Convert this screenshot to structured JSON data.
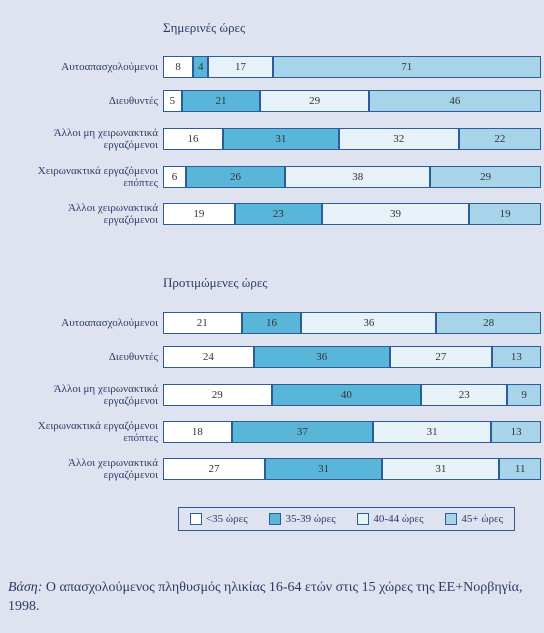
{
  "chart_data": [
    {
      "type": "bar",
      "title": "Σημερινές ώρες",
      "categories": [
        "Αυτοαπασχολούμενοι",
        "Διευθυντές",
        "Άλλοι μη χειρωνακτικά\nεργαζόμενοι",
        "Χειρωνακτικά εργαζόμενοι\nεπόπτες",
        "Άλλοι χειρωνακτικά\nεργαζόμενοι"
      ],
      "series": [
        {
          "color": "#ffffff",
          "values": [
            8,
            5,
            16,
            6,
            19
          ]
        },
        {
          "color": "#5ab6d9",
          "values": [
            4,
            21,
            31,
            26,
            23
          ]
        },
        {
          "color": "#e6f1f8",
          "values": [
            17,
            29,
            32,
            38,
            39
          ]
        },
        {
          "color": "#a8d4ea",
          "values": [
            71,
            46,
            22,
            29,
            19
          ]
        }
      ]
    },
    {
      "type": "bar",
      "title": "Προτιμώμενες ώρες",
      "categories": [
        "Αυτοαπασχολούμενοι",
        "Διευθυντές",
        "Άλλοι μη χειρωνακτικά\nεργαζόμενοι",
        "Χειρωνακτικά εργαζόμενοι\nεπόπτες",
        "Άλλοι χειρωνακτικά\nεργαζόμενοι"
      ],
      "series": [
        {
          "name": "<35 ώρες",
          "color": "#ffffff",
          "values": [
            21,
            24,
            29,
            18,
            27
          ]
        },
        {
          "name": "35-39 ώρες",
          "color": "#5ab6d9",
          "values": [
            16,
            36,
            40,
            37,
            31
          ]
        },
        {
          "name": "40-44 ώρες",
          "color": "#e6f1f8",
          "values": [
            36,
            27,
            23,
            31,
            31
          ]
        },
        {
          "name": "45+ ώρες",
          "color": "#a8d4ea",
          "values": [
            28,
            13,
            9,
            13,
            11
          ]
        }
      ]
    }
  ],
  "note": {
    "label": "Βάση:",
    "text": "Ο απασχολούμενος πληθυσμός ηλικίας 16-64 ετών στις 15 χώρες της ΕΕ+Νορβηγία, 1998."
  }
}
